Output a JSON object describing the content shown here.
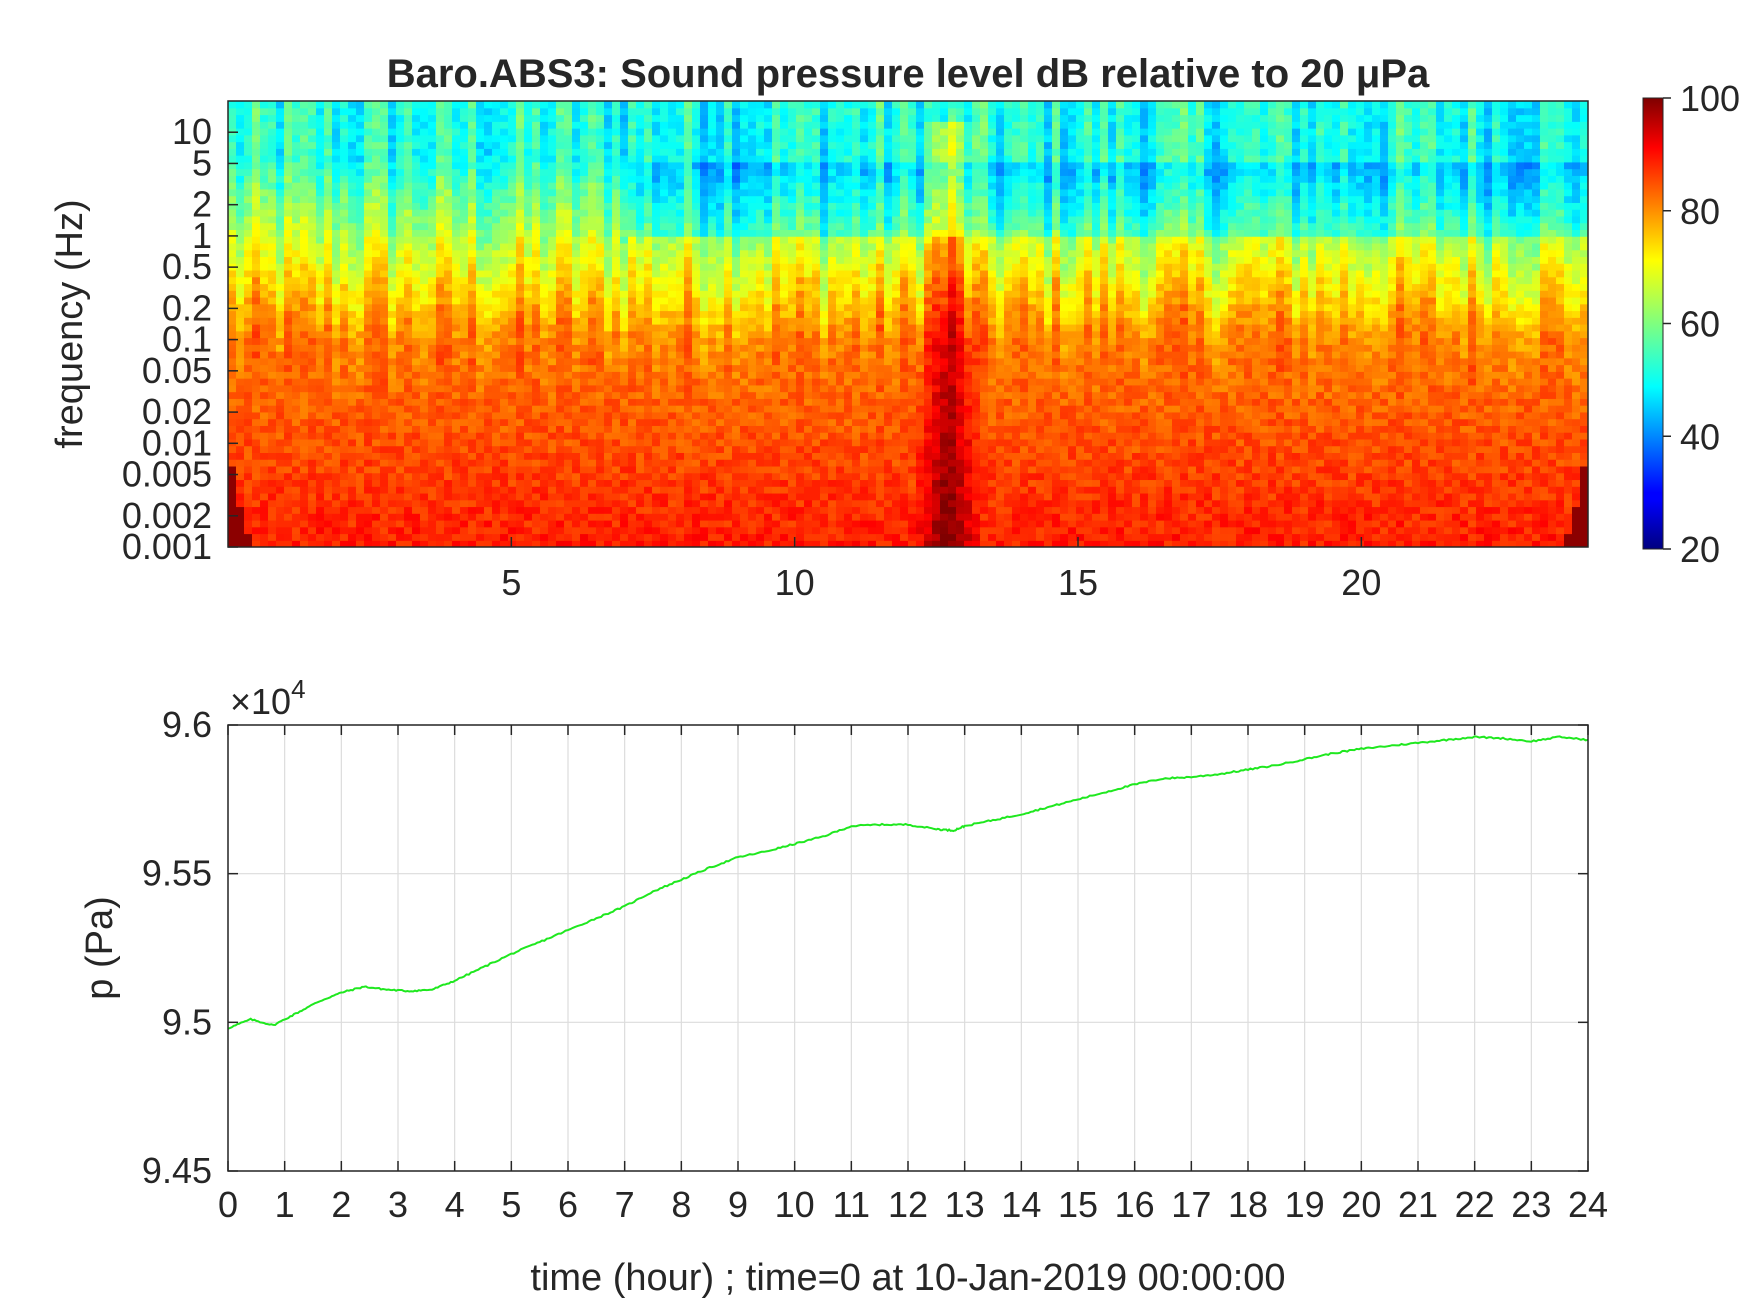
{
  "chart_data": [
    {
      "type": "heatmap",
      "title": "Baro.ABS3: Sound pressure level dB relative to 20 μPa",
      "xlabel": "",
      "ylabel": "frequency (Hz)",
      "xlim": [
        0,
        24
      ],
      "x_ticks": [
        "5",
        "10",
        "15",
        "20"
      ],
      "x_tick_values": [
        5,
        10,
        15,
        20
      ],
      "y_scale": "log",
      "ylim": [
        0.001,
        20
      ],
      "y_ticks": [
        "0.001",
        "0.002",
        "0.005",
        "0.01",
        "0.02",
        "0.05",
        "0.1",
        "0.2",
        "0.5",
        "1",
        "2",
        "5",
        "10"
      ],
      "y_tick_values": [
        0.001,
        0.002,
        0.005,
        0.01,
        0.02,
        0.05,
        0.1,
        0.2,
        0.5,
        1,
        2,
        5,
        10
      ],
      "colorbar": {
        "colormap": "jet",
        "range": [
          20,
          100
        ],
        "ticks": [
          "20",
          "40",
          "60",
          "80",
          "100"
        ],
        "tick_values": [
          20,
          40,
          60,
          80,
          100
        ]
      },
      "description_of_values": "SPL highest (80-100 dB) at low frequencies 0.001-0.1 Hz, decreasing to about 50 dB above 5 Hz; intense vertical streak near hour 12.7",
      "highlights": {
        "intense_column_hour": 12.7,
        "quiet_band_hz": [
          1,
          5
        ]
      }
    },
    {
      "type": "line",
      "title": "",
      "xlabel": "time (hour) ; time=0 at 10-Jan-2019 00:00:00",
      "ylabel": "p (Pa)",
      "exponent_label": "×10",
      "exponent_power": "4",
      "xlim": [
        0,
        24
      ],
      "ylim": [
        94500,
        96000
      ],
      "grid": true,
      "x_ticks": [
        "0",
        "1",
        "2",
        "3",
        "4",
        "5",
        "6",
        "7",
        "8",
        "9",
        "10",
        "11",
        "12",
        "13",
        "14",
        "15",
        "16",
        "17",
        "18",
        "19",
        "20",
        "21",
        "22",
        "23",
        "24"
      ],
      "y_ticks": [
        "9.45",
        "9.5",
        "9.55",
        "9.6"
      ],
      "y_tick_values": [
        94500,
        95000,
        95500,
        96000
      ],
      "series": [
        {
          "color": "#1fe81f",
          "x": [
            0,
            0.4,
            0.8,
            1.2,
            1.6,
            2.0,
            2.4,
            2.8,
            3.2,
            3.6,
            4.0,
            4.5,
            5.0,
            5.5,
            6.0,
            6.5,
            7.0,
            7.5,
            8.0,
            8.5,
            9.0,
            9.5,
            10.0,
            10.5,
            11.0,
            11.5,
            12.0,
            12.5,
            12.8,
            13.0,
            13.5,
            14.0,
            14.5,
            15.0,
            15.5,
            16.0,
            16.5,
            17.0,
            17.5,
            18.0,
            18.5,
            19.0,
            19.5,
            20.0,
            20.5,
            21.0,
            21.5,
            22.0,
            22.5,
            23.0,
            23.5,
            24.0
          ],
          "y": [
            94980,
            95010,
            94990,
            95030,
            95070,
            95100,
            95120,
            95110,
            95105,
            95110,
            95140,
            95185,
            95230,
            95270,
            95310,
            95350,
            95390,
            95440,
            95480,
            95520,
            95555,
            95575,
            95600,
            95625,
            95660,
            95665,
            95665,
            95650,
            95645,
            95660,
            95680,
            95700,
            95725,
            95750,
            95775,
            95800,
            95820,
            95825,
            95835,
            95850,
            95865,
            95885,
            95905,
            95920,
            95930,
            95940,
            95950,
            95960,
            95955,
            95945,
            95960,
            95950
          ]
        }
      ]
    }
  ]
}
